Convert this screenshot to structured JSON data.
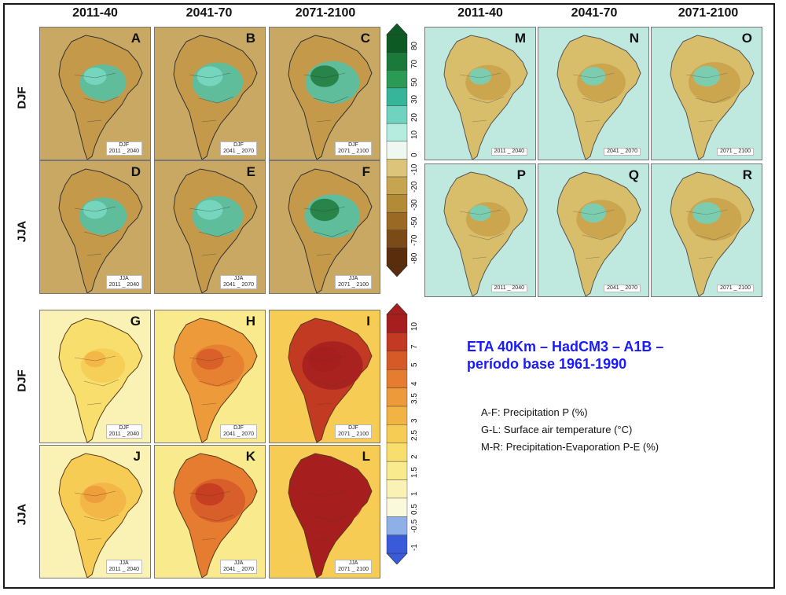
{
  "title": {
    "line1": "ETA 40Km – HadCM3 – A1B –",
    "line2": "período base 1961-1990"
  },
  "legend": [
    "A-F: Precipitation P (%)",
    "G-L: Surface air temperature (°C)",
    "M-R: Precipitation-Evaporation P-E (%)"
  ],
  "periods": [
    "2011-40",
    "2041-70",
    "2071-2100"
  ],
  "seasons": [
    "DJF",
    "JJA"
  ],
  "precip_colorbar": [
    "-80",
    "-70",
    "-50",
    "-30",
    "-20",
    "-10",
    "0",
    "10",
    "20",
    "30",
    "50",
    "70",
    "80"
  ],
  "temp_colorbar": [
    "-1",
    "-0.5",
    "0.5",
    "1",
    "1.5",
    "2",
    "2.5",
    "3",
    "3.5",
    "4",
    "5",
    "7",
    "10"
  ],
  "panels": [
    {
      "letter": "A",
      "group": "precip",
      "season": "DJF",
      "sub1": "DJF",
      "sub2": "2011 _ 2040",
      "intensity": 0.25
    },
    {
      "letter": "B",
      "group": "precip",
      "season": "DJF",
      "sub1": "DJF",
      "sub2": "2041 _ 2070",
      "intensity": 0.45
    },
    {
      "letter": "C",
      "group": "precip",
      "season": "DJF",
      "sub1": "DJF",
      "sub2": "2071 _ 2100",
      "intensity": 0.6
    },
    {
      "letter": "D",
      "group": "precip",
      "season": "JJA",
      "sub1": "JJA",
      "sub2": "2011 _ 2040",
      "intensity": 0.3
    },
    {
      "letter": "E",
      "group": "precip",
      "season": "JJA",
      "sub1": "JJA",
      "sub2": "2041 _ 2070",
      "intensity": 0.45
    },
    {
      "letter": "F",
      "group": "precip",
      "season": "JJA",
      "sub1": "JJA",
      "sub2": "2071 _ 2100",
      "intensity": 0.65
    },
    {
      "letter": "G",
      "group": "temp",
      "season": "DJF",
      "sub1": "DJF",
      "sub2": "2011 _ 2040",
      "intensity": 0.15
    },
    {
      "letter": "H",
      "group": "temp",
      "season": "DJF",
      "sub1": "DJF",
      "sub2": "2041 _ 2070",
      "intensity": 0.55
    },
    {
      "letter": "I",
      "group": "temp",
      "season": "DJF",
      "sub1": "DJF",
      "sub2": "2071 _ 2100",
      "intensity": 0.9
    },
    {
      "letter": "J",
      "group": "temp",
      "season": "JJA",
      "sub1": "JJA",
      "sub2": "2011 _ 2040",
      "intensity": 0.25
    },
    {
      "letter": "K",
      "group": "temp",
      "season": "JJA",
      "sub1": "JJA",
      "sub2": "2041 _ 2070",
      "intensity": 0.65
    },
    {
      "letter": "L",
      "group": "temp",
      "season": "JJA",
      "sub1": "JJA",
      "sub2": "2071 _ 2100",
      "intensity": 0.95
    },
    {
      "letter": "M",
      "group": "pe",
      "season": "DJF",
      "sub1": "",
      "sub2": "2011 _ 2040",
      "intensity": 0.2
    },
    {
      "letter": "N",
      "group": "pe",
      "season": "DJF",
      "sub1": "",
      "sub2": "2041 _ 2070",
      "intensity": 0.35
    },
    {
      "letter": "O",
      "group": "pe",
      "season": "DJF",
      "sub1": "",
      "sub2": "2071 _ 2100",
      "intensity": 0.5
    },
    {
      "letter": "P",
      "group": "pe",
      "season": "JJA",
      "sub1": "",
      "sub2": "2011 _ 2040",
      "intensity": 0.15
    },
    {
      "letter": "Q",
      "group": "pe",
      "season": "JJA",
      "sub1": "",
      "sub2": "2041 _ 2070",
      "intensity": 0.4
    },
    {
      "letter": "R",
      "group": "pe",
      "season": "JJA",
      "sub1": "",
      "sub2": "2071 _ 2100",
      "intensity": 0.6
    }
  ],
  "colors": {
    "title": "#1a1aff",
    "precip": [
      "#5a2d0c",
      "#7a4a17",
      "#9a6a24",
      "#b38a35",
      "#c7a44f",
      "#dcc47a",
      "#eef7f0",
      "#b5ecdf",
      "#6fd3c0",
      "#36b59a",
      "#2a9a55",
      "#1a7a3a",
      "#0e5a25"
    ],
    "temp": [
      "#3a5bd9",
      "#8db0e8",
      "#fbf9dc",
      "#faf2b5",
      "#f9ea8e",
      "#f8de6c",
      "#f6cc55",
      "#f2b345",
      "#ec9a3a",
      "#e57c30",
      "#d65a28",
      "#c33a22",
      "#a61e1e"
    ]
  }
}
